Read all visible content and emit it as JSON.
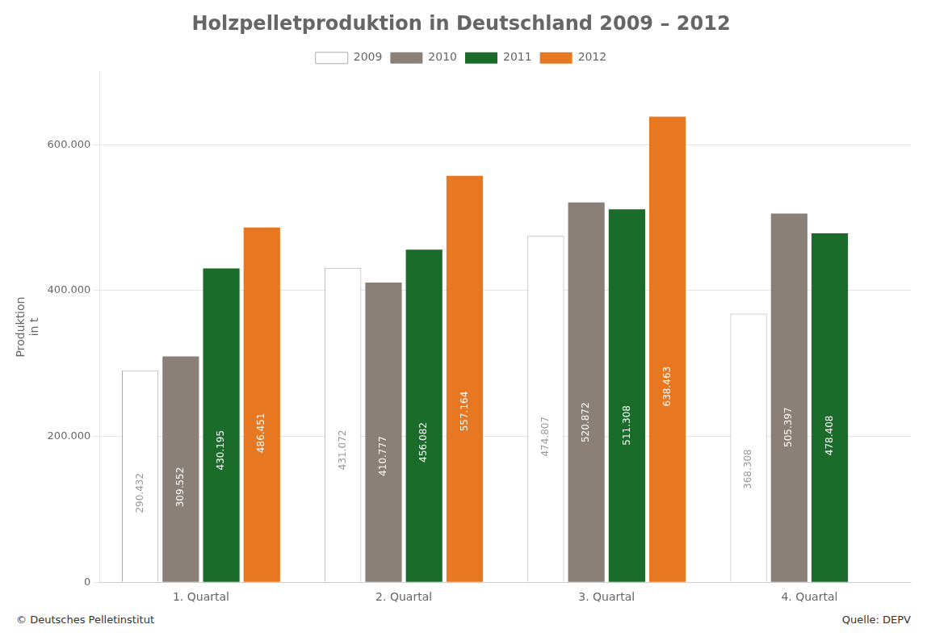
{
  "chart_data": {
    "type": "bar",
    "title": "Holzpelletproduktion in Deutschland 2009 – 2012",
    "ylabel": "Produktion\nin t",
    "categories": [
      "1. Quartal",
      "2. Quartal",
      "3. Quartal",
      "4. Quartal"
    ],
    "series": [
      {
        "name": "2009",
        "color": "#FFFFFF",
        "values": [
          290432,
          431072,
          474807,
          368308
        ],
        "value_labels": [
          "290.432",
          "431.072",
          "474.807",
          "368.308"
        ]
      },
      {
        "name": "2010",
        "color": "#8B8078",
        "values": [
          309552,
          410777,
          520872,
          505397
        ],
        "value_labels": [
          "309.552",
          "410.777",
          "520.872",
          "505.397"
        ]
      },
      {
        "name": "2011",
        "color": "#1B6B2A",
        "values": [
          430195,
          456082,
          511308,
          478408
        ],
        "value_labels": [
          "430.195",
          "456.082",
          "511.308",
          "478.408"
        ]
      },
      {
        "name": "2012",
        "color": "#E87722",
        "values": [
          486451,
          557164,
          638463,
          null
        ],
        "value_labels": [
          "486.451",
          "557.164",
          "638.463",
          null
        ]
      }
    ],
    "ylim": [
      0,
      700000
    ],
    "yticks": [
      0,
      {
        "value": 200000,
        "label": "200.000"
      },
      {
        "value": 400000,
        "label": "400.000"
      },
      {
        "value": 600000,
        "label": "600.000"
      }
    ],
    "grid": true,
    "legend": "top",
    "data_labels": true,
    "annotations": [
      "© Deutsches Pelletinstitut",
      "Quelle: DEPV"
    ]
  }
}
